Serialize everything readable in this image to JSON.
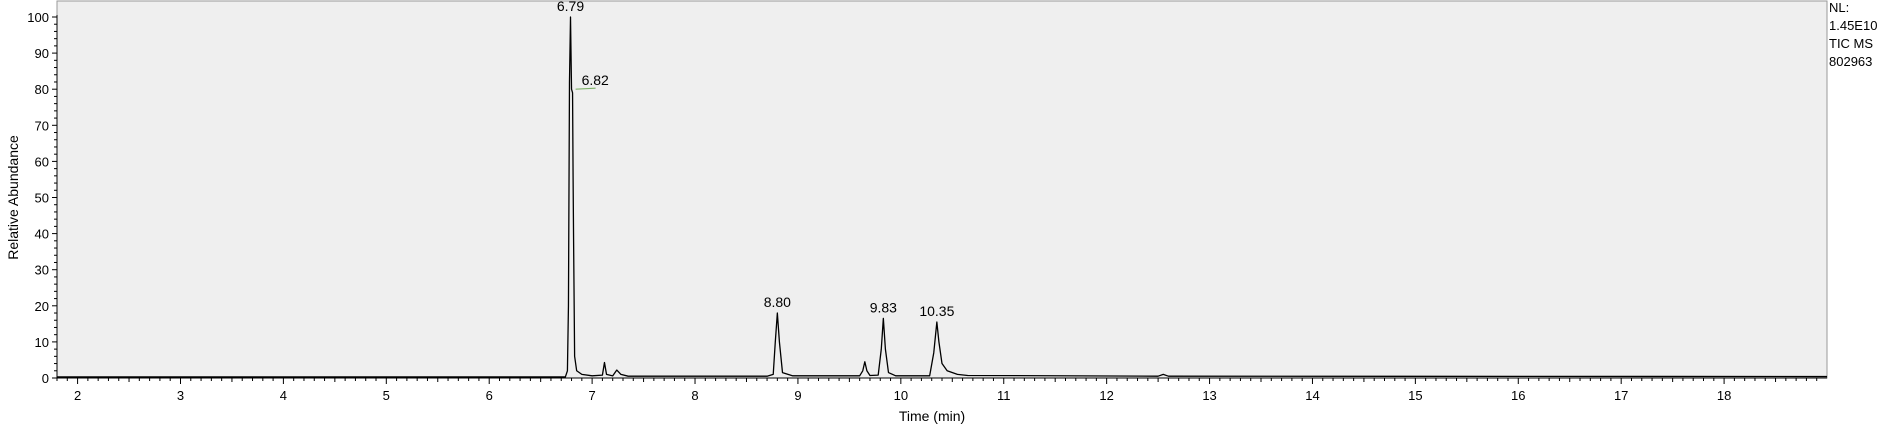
{
  "chart_data": {
    "type": "line",
    "xlabel": "Time (min)",
    "ylabel": "Relative Abundance",
    "xlim": [
      1.8,
      19.0
    ],
    "ylim": [
      0,
      100
    ],
    "x_ticks": [
      2,
      3,
      4,
      5,
      6,
      7,
      8,
      9,
      10,
      11,
      12,
      13,
      14,
      15,
      16,
      17,
      18
    ],
    "y_ticks": [
      0,
      10,
      20,
      30,
      40,
      50,
      60,
      70,
      80,
      90,
      100
    ],
    "grid": false,
    "background_color": "#efefef",
    "line_color": "#000000",
    "info": [
      "NL:",
      "1.45E10",
      "TIC  MS",
      "802963"
    ],
    "peak_labels": [
      {
        "text": "6.79",
        "x": 6.79,
        "y": 100
      },
      {
        "text": "6.82",
        "x": 6.82,
        "y": 80
      },
      {
        "text": "8.80",
        "x": 8.8,
        "y": 18
      },
      {
        "text": "9.83",
        "x": 9.83,
        "y": 16.5
      },
      {
        "text": "10.35",
        "x": 10.35,
        "y": 15.5
      }
    ],
    "series": [
      {
        "points": [
          [
            1.8,
            0.3
          ],
          [
            6.74,
            0.3
          ],
          [
            6.76,
            2
          ],
          [
            6.77,
            20
          ],
          [
            6.78,
            82
          ],
          [
            6.79,
            100
          ],
          [
            6.8,
            80
          ],
          [
            6.81,
            79
          ],
          [
            6.815,
            56
          ],
          [
            6.82,
            38
          ],
          [
            6.83,
            6
          ],
          [
            6.85,
            2
          ],
          [
            6.9,
            1
          ],
          [
            7.0,
            0.6
          ],
          [
            7.1,
            0.8
          ],
          [
            7.12,
            4.3
          ],
          [
            7.14,
            1
          ],
          [
            7.2,
            0.6
          ],
          [
            7.24,
            2.2
          ],
          [
            7.28,
            1
          ],
          [
            7.35,
            0.5
          ],
          [
            8.7,
            0.5
          ],
          [
            8.76,
            1
          ],
          [
            8.78,
            10
          ],
          [
            8.8,
            18
          ],
          [
            8.82,
            10
          ],
          [
            8.85,
            1.5
          ],
          [
            8.95,
            0.6
          ],
          [
            9.6,
            0.6
          ],
          [
            9.63,
            2
          ],
          [
            9.65,
            4.5
          ],
          [
            9.67,
            2
          ],
          [
            9.7,
            0.7
          ],
          [
            9.78,
            0.8
          ],
          [
            9.81,
            8
          ],
          [
            9.83,
            16.5
          ],
          [
            9.85,
            8
          ],
          [
            9.88,
            1.5
          ],
          [
            9.95,
            0.6
          ],
          [
            10.28,
            0.6
          ],
          [
            10.32,
            7
          ],
          [
            10.35,
            15.5
          ],
          [
            10.37,
            10
          ],
          [
            10.4,
            4
          ],
          [
            10.45,
            2
          ],
          [
            10.55,
            1
          ],
          [
            10.65,
            0.7
          ],
          [
            12.5,
            0.5
          ],
          [
            12.55,
            1
          ],
          [
            12.6,
            0.5
          ],
          [
            19.0,
            0.4
          ]
        ]
      }
    ]
  }
}
